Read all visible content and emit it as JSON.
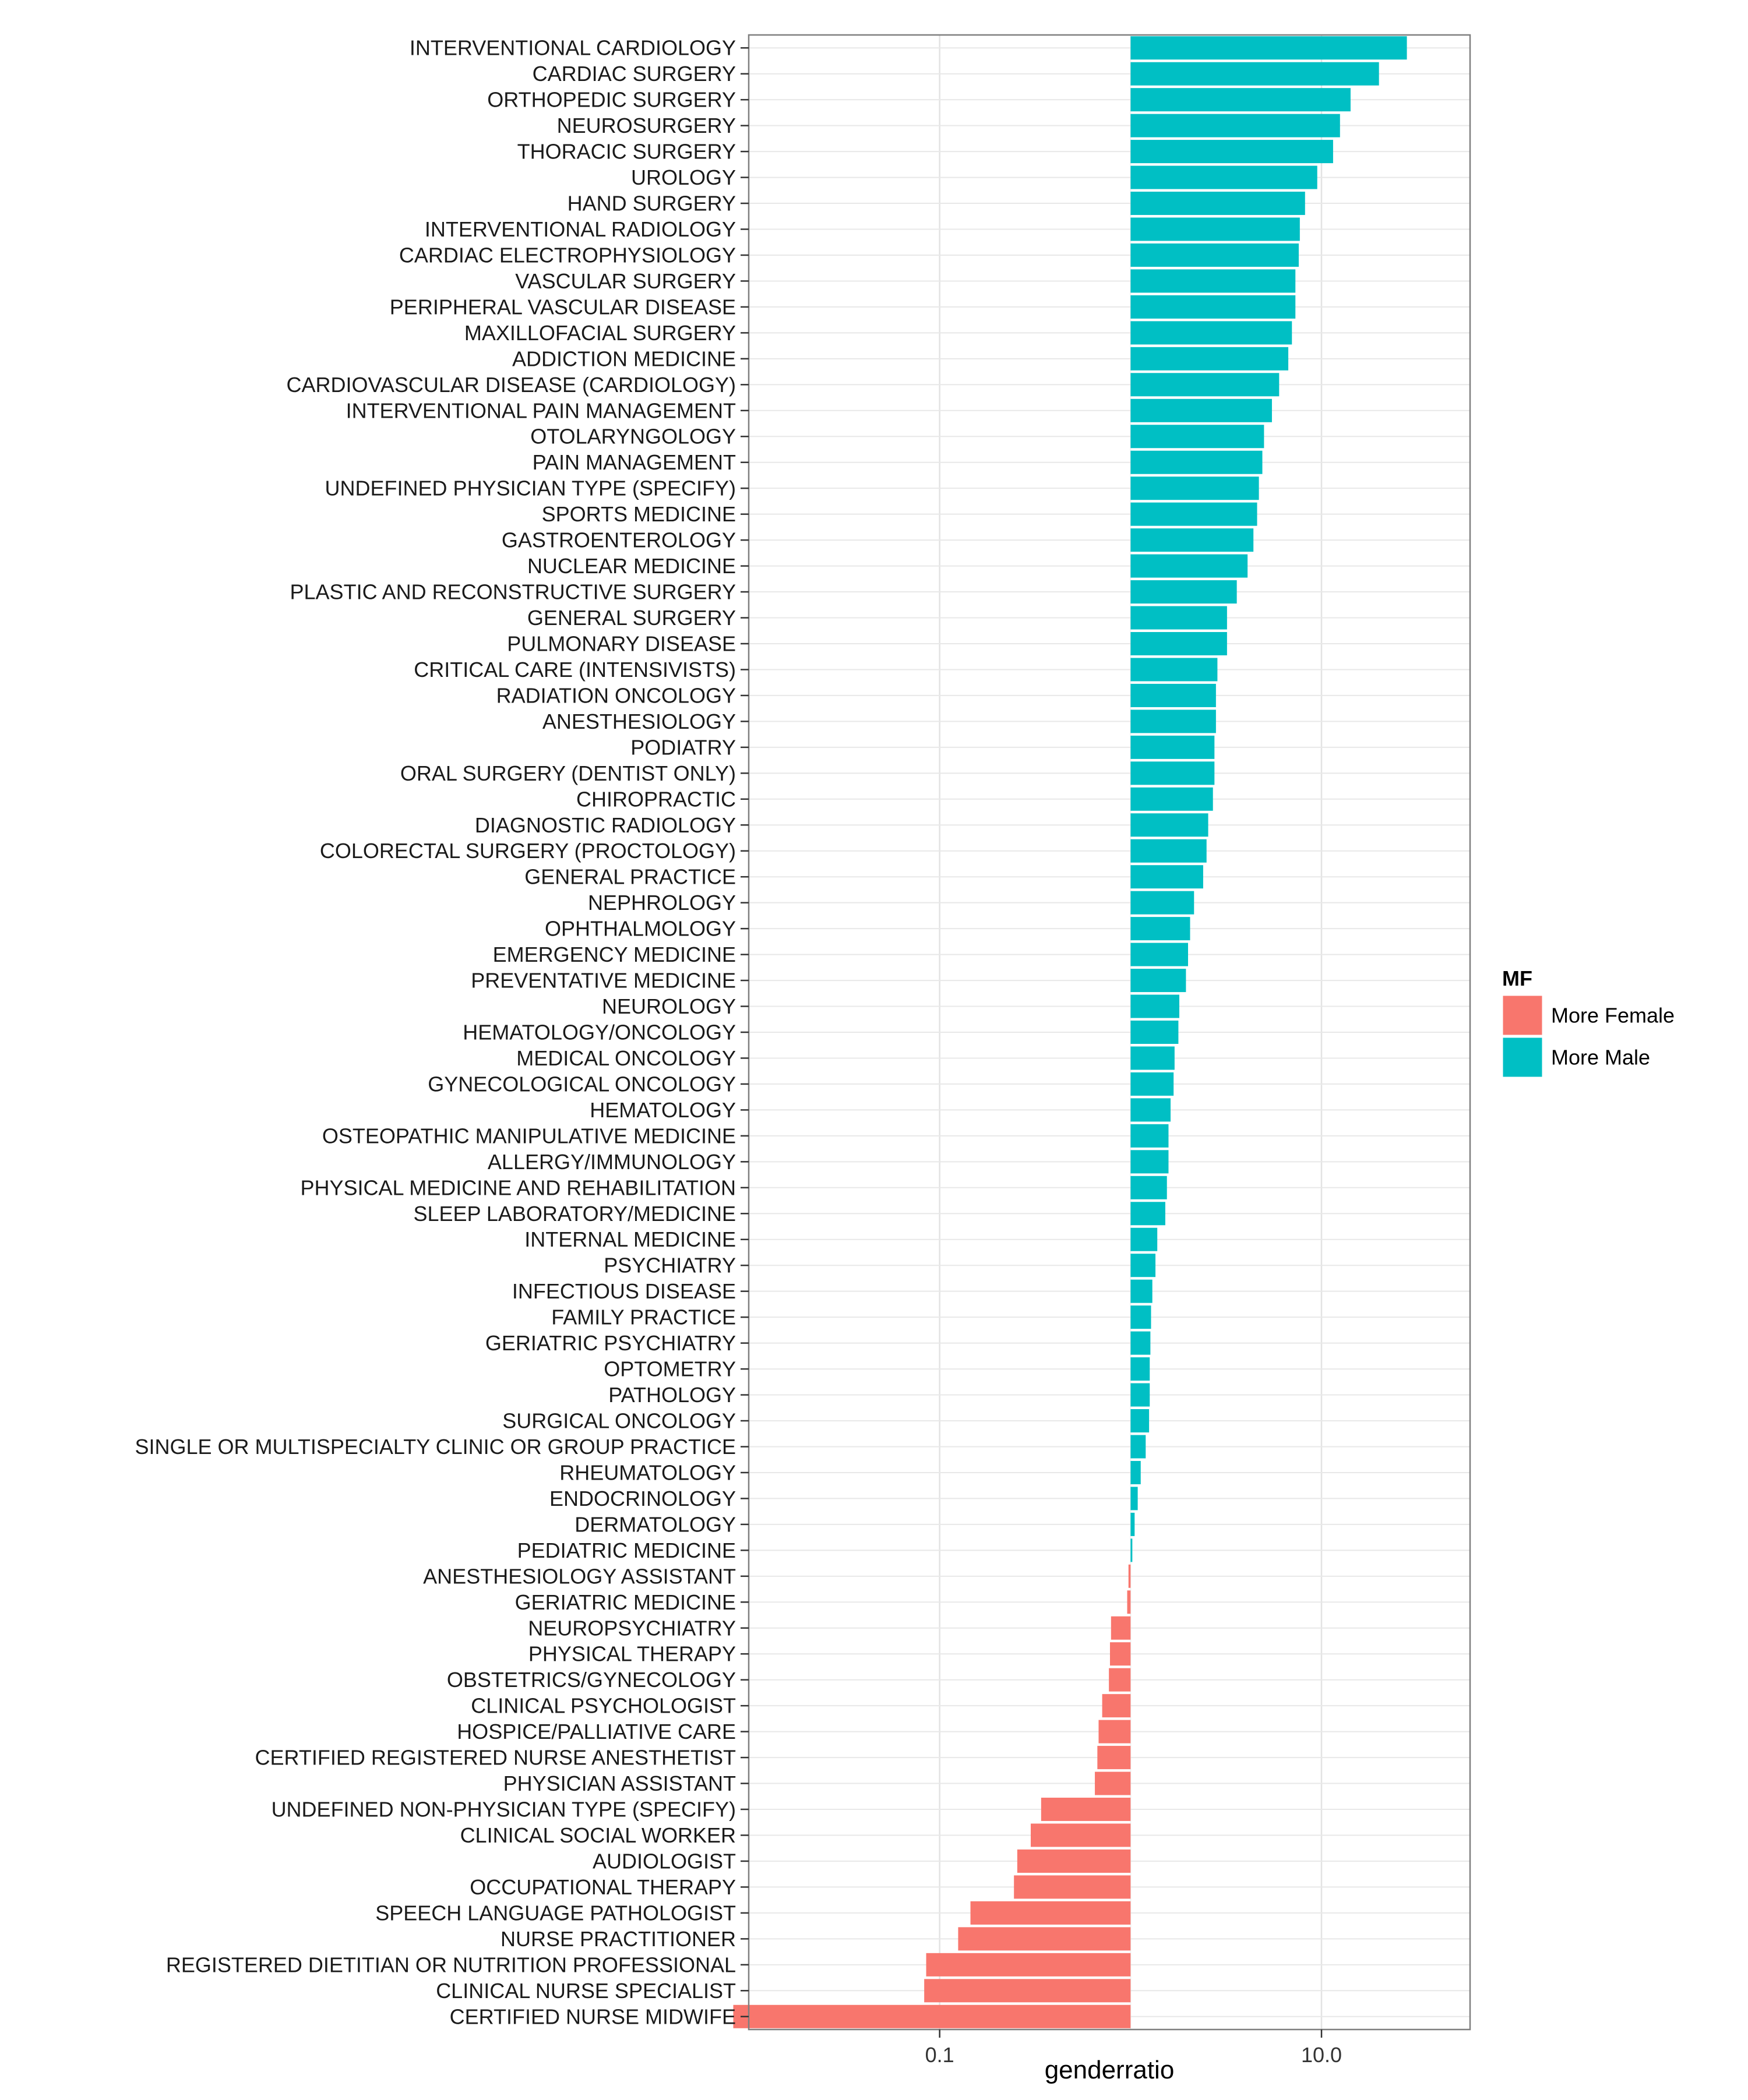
{
  "chart_data": {
    "type": "bar",
    "orientation": "horizontal",
    "xlabel": "genderratio",
    "ylabel": "",
    "x_scale": "log10",
    "xlim": [
      0.01,
      60
    ],
    "x_ticks": [
      {
        "value": 0.1,
        "label": "0.1"
      },
      {
        "value": 10,
        "label": "10.0"
      }
    ],
    "baseline": 1,
    "grid": true,
    "legend": {
      "title": "MF",
      "position": "right",
      "entries": [
        {
          "name": "More Female",
          "color": "#F8766D"
        },
        {
          "name": "More Male",
          "color": "#00BFC4"
        }
      ]
    },
    "categories": [
      "INTERVENTIONAL CARDIOLOGY",
      "CARDIAC SURGERY",
      "ORTHOPEDIC SURGERY",
      "NEUROSURGERY",
      "THORACIC SURGERY",
      "UROLOGY",
      "HAND SURGERY",
      "INTERVENTIONAL RADIOLOGY",
      "CARDIAC ELECTROPHYSIOLOGY",
      "VASCULAR SURGERY",
      "PERIPHERAL VASCULAR DISEASE",
      "MAXILLOFACIAL SURGERY",
      "ADDICTION MEDICINE",
      "CARDIOVASCULAR DISEASE (CARDIOLOGY)",
      "INTERVENTIONAL PAIN MANAGEMENT",
      "OTOLARYNGOLOGY",
      "PAIN MANAGEMENT",
      "UNDEFINED PHYSICIAN TYPE (SPECIFY)",
      "SPORTS MEDICINE",
      "GASTROENTEROLOGY",
      "NUCLEAR MEDICINE",
      "PLASTIC AND RECONSTRUCTIVE SURGERY",
      "GENERAL SURGERY",
      "PULMONARY DISEASE",
      "CRITICAL CARE (INTENSIVISTS)",
      "RADIATION ONCOLOGY",
      "ANESTHESIOLOGY",
      "PODIATRY",
      "ORAL SURGERY (DENTIST ONLY)",
      "CHIROPRACTIC",
      "DIAGNOSTIC RADIOLOGY",
      "COLORECTAL SURGERY (PROCTOLOGY)",
      "GENERAL PRACTICE",
      "NEPHROLOGY",
      "OPHTHALMOLOGY",
      "EMERGENCY MEDICINE",
      "PREVENTATIVE MEDICINE",
      "NEUROLOGY",
      "HEMATOLOGY/ONCOLOGY",
      "MEDICAL ONCOLOGY",
      "GYNECOLOGICAL ONCOLOGY",
      "HEMATOLOGY",
      "OSTEOPATHIC MANIPULATIVE MEDICINE",
      "ALLERGY/IMMUNOLOGY",
      "PHYSICAL MEDICINE AND REHABILITATION",
      "SLEEP LABORATORY/MEDICINE",
      "INTERNAL MEDICINE",
      "PSYCHIATRY",
      "INFECTIOUS DISEASE",
      "FAMILY PRACTICE",
      "GERIATRIC PSYCHIATRY",
      "OPTOMETRY",
      "PATHOLOGY",
      "SURGICAL ONCOLOGY",
      "SINGLE OR MULTISPECIALTY CLINIC OR GROUP PRACTICE",
      "RHEUMATOLOGY",
      "ENDOCRINOLOGY",
      "DERMATOLOGY",
      "PEDIATRIC MEDICINE",
      "ANESTHESIOLOGY ASSISTANT",
      "GERIATRIC MEDICINE",
      "NEUROPSYCHIATRY",
      "PHYSICAL THERAPY",
      "OBSTETRICS/GYNECOLOGY",
      "CLINICAL PSYCHOLOGIST",
      "HOSPICE/PALLIATIVE CARE",
      "CERTIFIED REGISTERED NURSE ANESTHETIST",
      "PHYSICIAN ASSISTANT",
      "UNDEFINED NON-PHYSICIAN TYPE (SPECIFY)",
      "CLINICAL SOCIAL WORKER",
      "AUDIOLOGIST",
      "OCCUPATIONAL THERAPY",
      "SPEECH LANGUAGE PATHOLOGIST",
      "NURSE PRACTITIONER",
      "REGISTERED DIETITIAN OR NUTRITION PROFESSIONAL",
      "CLINICAL NURSE SPECIALIST",
      "CERTIFIED NURSE MIDWIFE"
    ],
    "values": [
      28,
      20,
      14.2,
      12.5,
      11.5,
      9.5,
      8.2,
      7.7,
      7.6,
      7.3,
      7.3,
      7.0,
      6.7,
      6.0,
      5.5,
      5.0,
      4.9,
      4.7,
      4.6,
      4.4,
      4.1,
      3.6,
      3.2,
      3.2,
      2.85,
      2.8,
      2.8,
      2.75,
      2.75,
      2.7,
      2.55,
      2.5,
      2.4,
      2.15,
      2.05,
      2.0,
      1.95,
      1.8,
      1.78,
      1.7,
      1.68,
      1.62,
      1.58,
      1.58,
      1.55,
      1.52,
      1.38,
      1.35,
      1.3,
      1.28,
      1.27,
      1.26,
      1.26,
      1.25,
      1.2,
      1.13,
      1.09,
      1.05,
      1.01,
      0.975,
      0.96,
      0.79,
      0.78,
      0.77,
      0.71,
      0.68,
      0.67,
      0.65,
      0.34,
      0.3,
      0.255,
      0.245,
      0.145,
      0.125,
      0.085,
      0.083,
      0.0083
    ],
    "groups": [
      "More Male",
      "More Male",
      "More Male",
      "More Male",
      "More Male",
      "More Male",
      "More Male",
      "More Male",
      "More Male",
      "More Male",
      "More Male",
      "More Male",
      "More Male",
      "More Male",
      "More Male",
      "More Male",
      "More Male",
      "More Male",
      "More Male",
      "More Male",
      "More Male",
      "More Male",
      "More Male",
      "More Male",
      "More Male",
      "More Male",
      "More Male",
      "More Male",
      "More Male",
      "More Male",
      "More Male",
      "More Male",
      "More Male",
      "More Male",
      "More Male",
      "More Male",
      "More Male",
      "More Male",
      "More Male",
      "More Male",
      "More Male",
      "More Male",
      "More Male",
      "More Male",
      "More Male",
      "More Male",
      "More Male",
      "More Male",
      "More Male",
      "More Male",
      "More Male",
      "More Male",
      "More Male",
      "More Male",
      "More Male",
      "More Male",
      "More Male",
      "More Male",
      "More Male",
      "More Female",
      "More Female",
      "More Female",
      "More Female",
      "More Female",
      "More Female",
      "More Female",
      "More Female",
      "More Female",
      "More Female",
      "More Female",
      "More Female",
      "More Female",
      "More Female",
      "More Female",
      "More Female",
      "More Female",
      "More Female"
    ]
  }
}
